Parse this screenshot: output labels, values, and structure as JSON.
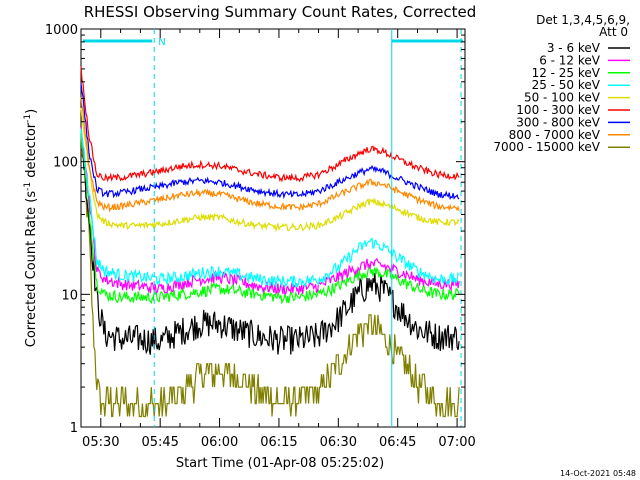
{
  "chart_data": {
    "type": "line",
    "title": "RHESSI Observing Summary Count Rates, Corrected",
    "xlabel": "Start Time (01-Apr-08 05:25:02)",
    "ylabel_parts": [
      "Corrected Count Rate (s",
      "-1",
      " detector",
      "-1",
      ")"
    ],
    "yscale": "log",
    "ylim": [
      1,
      1000
    ],
    "y_ticks": [
      1,
      10,
      100,
      1000
    ],
    "y_tick_labels": [
      "1",
      "10",
      "100",
      "1000"
    ],
    "xlim_minutes": [
      0,
      97
    ],
    "x_ticks": [
      5,
      20,
      35,
      50,
      65,
      80,
      95
    ],
    "x_tick_labels": [
      "05:30",
      "05:45",
      "06:00",
      "06:15",
      "06:30",
      "06:45",
      "07:00"
    ],
    "legend_title_lines": [
      "Det 1,3,4,5,6,9,",
      "Att 0"
    ],
    "legend_position": "right",
    "timestamp": "14-Oct-2021 05:48",
    "night_marker": {
      "label": "N",
      "start_min": 0,
      "end_min": 18.5
    },
    "vertical_lines_min": [
      18.5,
      78.5,
      96
    ],
    "series": [
      {
        "name": "3 - 6 keV",
        "color": "#000000",
        "x": [
          0,
          2,
          4,
          6,
          10,
          15,
          20,
          25,
          30,
          35,
          40,
          45,
          50,
          55,
          60,
          65,
          70,
          73,
          76,
          80,
          85,
          90,
          95
        ],
        "y": [
          170,
          40,
          9,
          5,
          4.6,
          4.6,
          4.4,
          5.2,
          6,
          6,
          5.3,
          4.8,
          4.5,
          4.5,
          4.8,
          6.5,
          10,
          12,
          11,
          8,
          5.5,
          4.8,
          4.8
        ]
      },
      {
        "name": "6 - 12 keV",
        "color": "#ff00ff",
        "x": [
          0,
          2,
          4,
          6,
          10,
          15,
          20,
          25,
          30,
          35,
          40,
          45,
          50,
          55,
          60,
          65,
          70,
          73,
          76,
          80,
          85,
          90,
          95
        ],
        "y": [
          200,
          55,
          15,
          13,
          12,
          11.5,
          11,
          12,
          13,
          13.5,
          12.5,
          11.5,
          11,
          11,
          11.5,
          13.5,
          16,
          17,
          16.5,
          15,
          13,
          12,
          12
        ]
      },
      {
        "name": "12 - 25 keV",
        "color": "#00ff00",
        "x": [
          0,
          2,
          4,
          6,
          10,
          15,
          20,
          25,
          30,
          35,
          40,
          45,
          50,
          55,
          60,
          65,
          70,
          73,
          76,
          80,
          85,
          90,
          95
        ],
        "y": [
          160,
          45,
          12,
          10,
          9.5,
          9.5,
          9.5,
          10,
          10.5,
          11,
          10.5,
          10,
          9.5,
          9.5,
          10,
          11.5,
          14,
          15,
          14.5,
          13,
          11,
          10,
          10
        ]
      },
      {
        "name": "25 - 50 keV",
        "color": "#00ffff",
        "x": [
          0,
          2,
          4,
          6,
          10,
          15,
          20,
          25,
          30,
          35,
          40,
          45,
          50,
          55,
          60,
          65,
          70,
          73,
          76,
          80,
          85,
          90,
          95
        ],
        "y": [
          180,
          60,
          18,
          15,
          14,
          13.5,
          13,
          13.5,
          14.5,
          15,
          14,
          13,
          12.5,
          12.5,
          13,
          16,
          22,
          25,
          23,
          19,
          15,
          13,
          13
        ]
      },
      {
        "name": "50 - 100 keV",
        "color": "#dddd00",
        "x": [
          0,
          2,
          4,
          6,
          10,
          15,
          20,
          25,
          30,
          35,
          40,
          45,
          50,
          55,
          60,
          65,
          70,
          73,
          76,
          80,
          85,
          90,
          95
        ],
        "y": [
          250,
          90,
          40,
          35,
          33,
          33,
          34,
          36,
          38,
          38,
          35,
          33,
          32,
          32,
          33,
          38,
          46,
          50,
          48,
          44,
          38,
          35,
          35
        ]
      },
      {
        "name": "100 - 300 keV",
        "color": "#ff0000",
        "x": [
          0,
          2,
          4,
          6,
          10,
          15,
          20,
          25,
          30,
          35,
          40,
          45,
          50,
          55,
          60,
          65,
          70,
          73,
          76,
          80,
          85,
          90,
          95
        ],
        "y": [
          500,
          160,
          80,
          75,
          76,
          80,
          85,
          92,
          95,
          93,
          86,
          80,
          76,
          75,
          80,
          95,
          115,
          125,
          120,
          105,
          90,
          80,
          78
        ]
      },
      {
        "name": "300 - 800 keV",
        "color": "#0000ff",
        "x": [
          0,
          2,
          4,
          6,
          10,
          15,
          20,
          25,
          30,
          35,
          40,
          45,
          50,
          55,
          60,
          65,
          70,
          73,
          76,
          80,
          85,
          90,
          95
        ],
        "y": [
          400,
          120,
          62,
          57,
          58,
          62,
          65,
          70,
          72,
          70,
          65,
          60,
          57,
          56,
          60,
          70,
          82,
          88,
          85,
          75,
          65,
          57,
          55
        ]
      },
      {
        "name": "800 - 7000 keV",
        "color": "#ff8800",
        "x": [
          0,
          2,
          4,
          6,
          10,
          15,
          20,
          25,
          30,
          35,
          40,
          45,
          50,
          55,
          60,
          65,
          70,
          73,
          76,
          80,
          85,
          90,
          95
        ],
        "y": [
          300,
          95,
          50,
          45,
          46,
          49,
          52,
          56,
          58,
          57,
          52,
          48,
          46,
          45,
          48,
          56,
          65,
          70,
          68,
          60,
          52,
          46,
          45
        ]
      },
      {
        "name": "7000 - 15000 keV",
        "color": "#808000",
        "x": [
          0,
          2,
          3,
          4,
          5,
          10,
          15,
          20,
          25,
          30,
          35,
          40,
          45,
          50,
          55,
          60,
          65,
          70,
          73,
          76,
          80,
          85,
          90,
          95
        ],
        "y": [
          150,
          30,
          6,
          2.2,
          1.5,
          1.5,
          1.5,
          1.5,
          1.7,
          2.5,
          2.6,
          2.3,
          1.8,
          1.6,
          1.6,
          1.8,
          3,
          5,
          6,
          5,
          3.5,
          2.2,
          1.6,
          1.5
        ]
      }
    ]
  }
}
